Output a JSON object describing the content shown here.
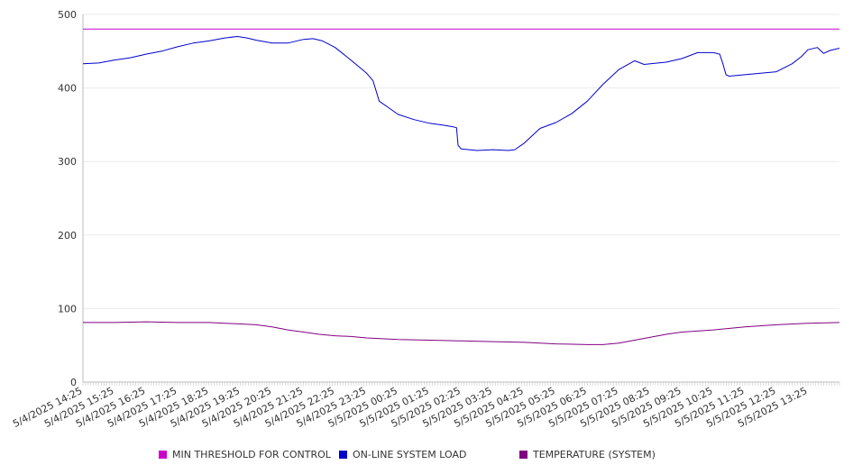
{
  "chart_data": {
    "type": "line",
    "ylim": [
      0,
      500
    ],
    "yticks": [
      0,
      100,
      200,
      300,
      400,
      500
    ],
    "x_tick_labels": [
      "5/4/2025 14:25",
      "5/4/2025 15:25",
      "5/4/2025 16:25",
      "5/4/2025 17:25",
      "5/4/2025 18:25",
      "5/4/2025 19:25",
      "5/4/2025 20:25",
      "5/4/2025 21:25",
      "5/4/2025 22:25",
      "5/4/2025 23:25",
      "5/5/2025 00:25",
      "5/5/2025 01:25",
      "5/5/2025 02:25",
      "5/5/2025 03:25",
      "5/5/2025 04:25",
      "5/5/2025 05:25",
      "5/5/2025 06:25",
      "5/5/2025 07:25",
      "5/5/2025 08:25",
      "5/5/2025 09:25",
      "5/5/2025 10:25",
      "5/5/2025 11:25",
      "5/5/2025 12:25",
      "5/5/2025 13:25"
    ],
    "x_hours": [
      0,
      1,
      2,
      3,
      4,
      5,
      6,
      7,
      8,
      9,
      10,
      11,
      12,
      13,
      14,
      15,
      16,
      17,
      18,
      19,
      20,
      21,
      22,
      23
    ],
    "x_range_hours": [
      0,
      24
    ],
    "grid": true,
    "legend_position": "bottom",
    "series": [
      {
        "name": "MIN THRESHOLD FOR CONTROL",
        "color": "#cc00cc",
        "points": [
          [
            0,
            480
          ],
          [
            24,
            480
          ]
        ]
      },
      {
        "name": "ON-LINE SYSTEM LOAD",
        "color": "#0000cc",
        "points": [
          [
            0,
            433
          ],
          [
            0.5,
            434
          ],
          [
            1,
            438
          ],
          [
            1.5,
            441
          ],
          [
            2,
            446
          ],
          [
            2.5,
            450
          ],
          [
            3,
            456
          ],
          [
            3.5,
            461
          ],
          [
            4,
            464
          ],
          [
            4.5,
            468
          ],
          [
            4.9,
            470
          ],
          [
            5.2,
            468
          ],
          [
            5.5,
            465
          ],
          [
            6,
            461
          ],
          [
            6.5,
            461
          ],
          [
            7,
            466
          ],
          [
            7.3,
            467
          ],
          [
            7.6,
            464
          ],
          [
            8,
            455
          ],
          [
            8.5,
            438
          ],
          [
            9,
            420
          ],
          [
            9.2,
            410
          ],
          [
            9.4,
            382
          ],
          [
            9.7,
            373
          ],
          [
            10,
            364
          ],
          [
            10.5,
            357
          ],
          [
            11,
            352
          ],
          [
            11.5,
            349
          ],
          [
            11.75,
            347
          ],
          [
            11.85,
            346
          ],
          [
            11.9,
            322
          ],
          [
            12,
            317
          ],
          [
            12.5,
            315
          ],
          [
            13,
            316
          ],
          [
            13.5,
            315
          ],
          [
            13.7,
            316
          ],
          [
            14,
            325
          ],
          [
            14.5,
            345
          ],
          [
            15,
            353
          ],
          [
            15.5,
            365
          ],
          [
            16,
            382
          ],
          [
            16.5,
            405
          ],
          [
            17,
            425
          ],
          [
            17.5,
            437
          ],
          [
            17.8,
            432
          ],
          [
            18,
            433
          ],
          [
            18.5,
            435
          ],
          [
            19,
            440
          ],
          [
            19.5,
            448
          ],
          [
            20,
            448
          ],
          [
            20.2,
            446
          ],
          [
            20.3,
            433
          ],
          [
            20.4,
            418
          ],
          [
            20.5,
            416
          ],
          [
            21,
            418
          ],
          [
            21.5,
            420
          ],
          [
            22,
            422
          ],
          [
            22.5,
            433
          ],
          [
            22.8,
            443
          ],
          [
            23,
            452
          ],
          [
            23.3,
            455
          ],
          [
            23.5,
            447
          ],
          [
            23.7,
            451
          ],
          [
            24,
            454
          ]
        ]
      },
      {
        "name": "TEMPERATURE (SYSTEM)",
        "color": "#800080",
        "points": [
          [
            0,
            81
          ],
          [
            1,
            81
          ],
          [
            2,
            82
          ],
          [
            3,
            81
          ],
          [
            4,
            81
          ],
          [
            4.5,
            80
          ],
          [
            5,
            79
          ],
          [
            5.5,
            78
          ],
          [
            6,
            75
          ],
          [
            6.5,
            71
          ],
          [
            7,
            68
          ],
          [
            7.5,
            65
          ],
          [
            8,
            63
          ],
          [
            8.5,
            62
          ],
          [
            9,
            60
          ],
          [
            10,
            58
          ],
          [
            11,
            57
          ],
          [
            12,
            56
          ],
          [
            13,
            55
          ],
          [
            14,
            54
          ],
          [
            15,
            52
          ],
          [
            16,
            51
          ],
          [
            16.5,
            51
          ],
          [
            17,
            53
          ],
          [
            17.5,
            57
          ],
          [
            18,
            61
          ],
          [
            18.5,
            65
          ],
          [
            19,
            68
          ],
          [
            20,
            71
          ],
          [
            21,
            75
          ],
          [
            22,
            78
          ],
          [
            23,
            80
          ],
          [
            24,
            81
          ]
        ]
      }
    ]
  }
}
